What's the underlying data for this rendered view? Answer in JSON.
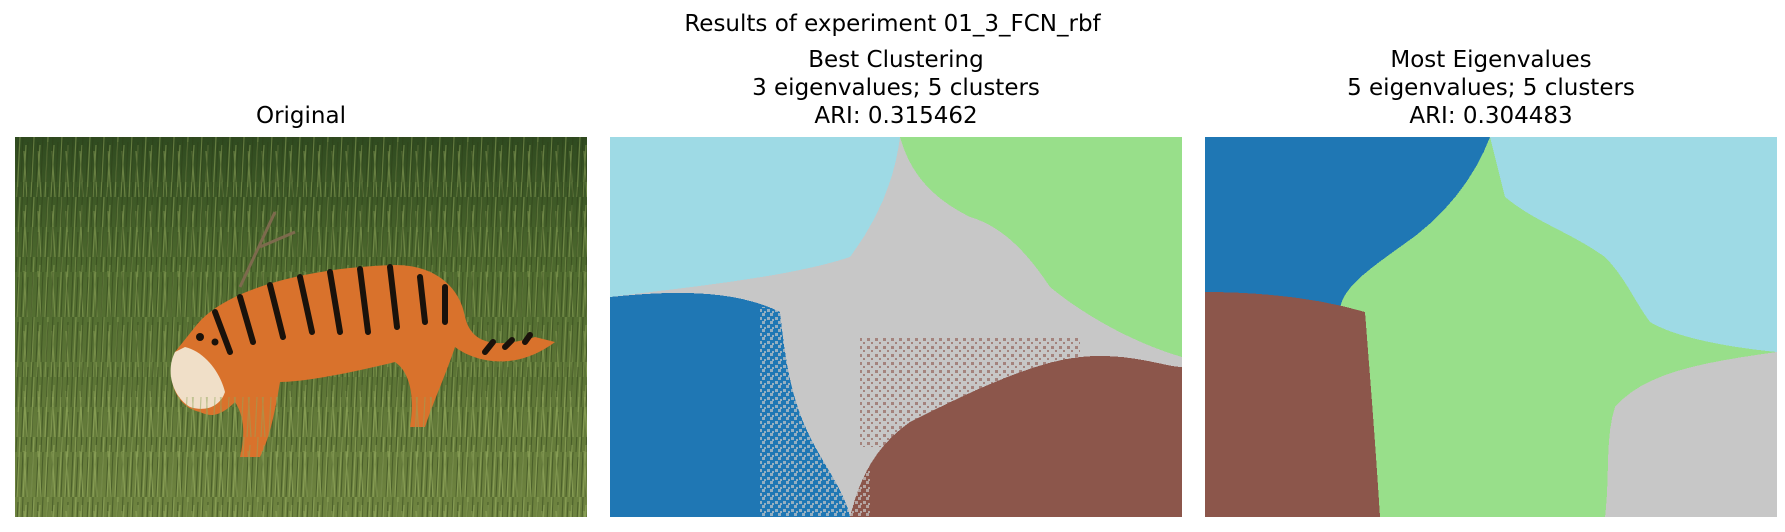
{
  "figure": {
    "suptitle": "Results of experiment 01_3_FCN_rbf"
  },
  "panels": [
    {
      "title_lines": [
        "Original"
      ],
      "content": "photo of a tiger walking through tall green grass"
    },
    {
      "title_lines": [
        "Best Clustering",
        "3 eigenvalues; 5 clusters",
        "ARI: 0.315462"
      ]
    },
    {
      "title_lines": [
        "Most Eigenvalues",
        "5 eigenvalues; 5 clusters",
        "ARI: 0.304483"
      ]
    }
  ],
  "colors": {
    "cluster_blue": "#1f77b4",
    "cluster_light_blue": "#9edae5",
    "cluster_green": "#98df8a",
    "cluster_gray": "#c7c7c7",
    "cluster_brown": "#8c564b",
    "grass_dark": "#3f5a28",
    "grass_light": "#7a8f45",
    "tiger_orange": "#d9722c"
  }
}
